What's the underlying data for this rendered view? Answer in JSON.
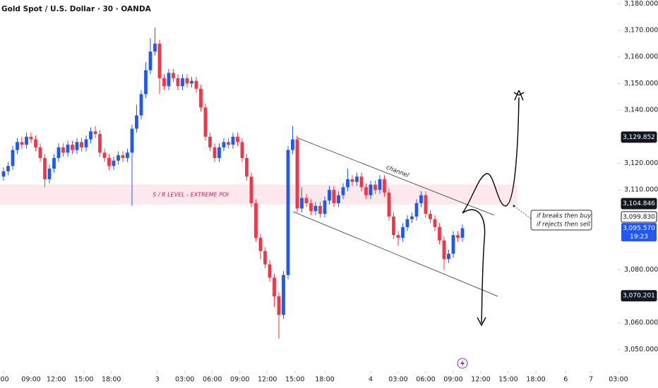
{
  "chart_data": {
    "type": "candlestick",
    "title": "Gold Spot / U.S. Dollar · 30 · OANDA",
    "up_color": "#2157f3",
    "down_color": "#f23645",
    "open": [
      3115,
      3117,
      3119,
      3125,
      3128,
      3127,
      3130,
      3129,
      3126,
      3122,
      3114,
      3118,
      3122,
      3126,
      3124,
      3127,
      3125,
      3128,
      3126,
      3129,
      3132,
      3131,
      3124,
      3122,
      3119,
      3121,
      3123,
      3122,
      3124,
      3133,
      3138,
      3146,
      3155,
      3162,
      3165,
      3152,
      3149,
      3154,
      3152,
      3149,
      3152,
      3150,
      3151,
      3148,
      3141,
      3130,
      3126,
      3122,
      3126,
      3128,
      3127,
      3130,
      3128,
      3122,
      3115,
      3105,
      3092,
      3087,
      3082,
      3077,
      3070,
      3063,
      3078,
      3125,
      3129,
      3103,
      3107,
      3105,
      3102,
      3104,
      3101,
      3106,
      3110,
      3105,
      3108,
      3111,
      3114,
      3113,
      3115,
      3111,
      3108,
      3112,
      3110,
      3114,
      3109,
      3100,
      3093,
      3092,
      3096,
      3099,
      3100,
      3105,
      3108,
      3101,
      3099,
      3096,
      3091,
      3084,
      3086,
      3093,
      3092
    ],
    "high": [
      3118.5,
      3120.5,
      3126.5,
      3129.5,
      3130,
      3131.5,
      3131.5,
      3130.5,
      3127.5,
      3123.5,
      3119.5,
      3123.5,
      3127.5,
      3127.5,
      3128.5,
      3128.5,
      3129.5,
      3129.5,
      3130.5,
      3133.5,
      3134,
      3132.5,
      3125.5,
      3123.5,
      3122.5,
      3124.5,
      3124.5,
      3125.5,
      3134.5,
      3142,
      3147.5,
      3158,
      3167,
      3171,
      3166.5,
      3153.5,
      3155.5,
      3155.5,
      3153.5,
      3153.5,
      3153.5,
      3152.5,
      3152.5,
      3149.5,
      3142.5,
      3131.5,
      3127.5,
      3127.5,
      3129.5,
      3129.5,
      3131.5,
      3131.5,
      3129.5,
      3123.5,
      3116.5,
      3106.5,
      3093.5,
      3088.5,
      3083.5,
      3078.5,
      3071.5,
      3079.5,
      3126.5,
      3134,
      3130.5,
      3111,
      3108.5,
      3106.5,
      3105.5,
      3105.5,
      3107.5,
      3111.5,
      3111.5,
      3109.5,
      3112.5,
      3118,
      3115.5,
      3116.5,
      3116.5,
      3112.5,
      3113.5,
      3113.5,
      3115.5,
      3115.5,
      3110.5,
      3101.5,
      3094.5,
      3097.5,
      3100.5,
      3101.5,
      3106.5,
      3109.5,
      3109.5,
      3102.5,
      3100.5,
      3097.5,
      3092.5,
      3087.5,
      3094.5,
      3094.5,
      3097
    ],
    "low": [
      3113.5,
      3115.5,
      3117.5,
      3123.5,
      3125.5,
      3125.5,
      3127.5,
      3124.5,
      3120.5,
      3111,
      3112.5,
      3116.5,
      3120.5,
      3122.5,
      3122.5,
      3123.5,
      3123.5,
      3124.5,
      3124.5,
      3127.5,
      3129.5,
      3122.5,
      3120.5,
      3117.5,
      3117.5,
      3119.5,
      3120.5,
      3120.5,
      3104,
      3131.5,
      3136.5,
      3144.5,
      3153.5,
      3160.5,
      3146,
      3147.5,
      3147.5,
      3150.5,
      3147.5,
      3147.5,
      3148.5,
      3148.5,
      3146.5,
      3139.5,
      3128.5,
      3124.5,
      3120.5,
      3120.5,
      3124.5,
      3125.5,
      3125.5,
      3126.5,
      3120.5,
      3113.5,
      3103.5,
      3090.5,
      3084,
      3080.5,
      3075.5,
      3066,
      3054,
      3061.5,
      3076.5,
      3123.5,
      3101.5,
      3101.5,
      3103.5,
      3100.5,
      3100.5,
      3099.5,
      3099.5,
      3104.5,
      3103.5,
      3103.5,
      3106.5,
      3109.5,
      3111.5,
      3111.5,
      3109.5,
      3106.5,
      3106.5,
      3108.5,
      3108.5,
      3107.5,
      3098.5,
      3091.5,
      3089,
      3090.5,
      3094.5,
      3097.5,
      3098.5,
      3103.5,
      3099.5,
      3097.5,
      3094.5,
      3089.5,
      3080,
      3082.5,
      3084.5,
      3090.5,
      3090.5
    ],
    "close": [
      3117,
      3119,
      3125,
      3128,
      3127,
      3130,
      3129,
      3126,
      3122,
      3114,
      3118,
      3122,
      3126,
      3124,
      3127,
      3125,
      3128,
      3126,
      3129,
      3132,
      3131,
      3124,
      3122,
      3119,
      3121,
      3123,
      3122,
      3124,
      3133,
      3138,
      3146,
      3155,
      3162,
      3165,
      3152,
      3149,
      3154,
      3152,
      3149,
      3152,
      3150,
      3151,
      3148,
      3141,
      3130,
      3126,
      3122,
      3126,
      3128,
      3127,
      3130,
      3128,
      3122,
      3115,
      3105,
      3092,
      3087,
      3082,
      3077,
      3070,
      3063,
      3078,
      3125,
      3129,
      3103,
      3107,
      3105,
      3102,
      3104,
      3101,
      3106,
      3110,
      3105,
      3108,
      3111,
      3114,
      3113,
      3115,
      3111,
      3108,
      3112,
      3110,
      3114,
      3109,
      3100,
      3093,
      3092,
      3096,
      3099,
      3100,
      3105,
      3108,
      3101,
      3099,
      3096,
      3091,
      3084,
      3086,
      3093,
      3092,
      3095.57
    ],
    "xlim": [
      -0.77,
      133.85
    ],
    "xticks": [
      {
        "value": 0,
        "label": ":00"
      },
      {
        "value": 6,
        "label": "09:00"
      },
      {
        "value": 11.5,
        "label": "12:00"
      },
      {
        "value": 17.5,
        "label": "15:00"
      },
      {
        "value": 23.5,
        "label": "18:00"
      },
      {
        "value": 33.5,
        "label": "3"
      },
      {
        "value": 39.5,
        "label": "03:00"
      },
      {
        "value": 45.5,
        "label": "06:00"
      },
      {
        "value": 51.5,
        "label": "09:00"
      },
      {
        "value": 57.5,
        "label": "12:00"
      },
      {
        "value": 63.5,
        "label": "15:00"
      },
      {
        "value": 70,
        "label": "18:00"
      },
      {
        "value": 80,
        "label": "4"
      },
      {
        "value": 86,
        "label": "03:00"
      },
      {
        "value": 92,
        "label": "06:00"
      },
      {
        "value": 98,
        "label": "09:00"
      },
      {
        "value": 104,
        "label": "12:00"
      },
      {
        "value": 110,
        "label": "15:00"
      },
      {
        "value": 116,
        "label": "18:00"
      },
      {
        "value": 122.5,
        "label": "6"
      },
      {
        "value": 128,
        "label": "7"
      },
      {
        "value": 134,
        "label": "03:00"
      }
    ],
    "ylim": [
      3044,
      3181.4
    ],
    "yticks": [
      {
        "value": 3050,
        "label": "3,050.000"
      },
      {
        "value": 3060,
        "label": "3,060.000"
      },
      {
        "value": 3080,
        "label": "3,080.000"
      },
      {
        "value": 3110,
        "label": "3,110.000"
      },
      {
        "value": 3120,
        "label": "3,120.000"
      },
      {
        "value": 3140,
        "label": "3,140.000"
      },
      {
        "value": 3150,
        "label": "3,150.000"
      },
      {
        "value": 3160,
        "label": "3,160.000"
      },
      {
        "value": 3170,
        "label": "3,170.000"
      },
      {
        "value": 3180,
        "label": "3,180.000"
      }
    ],
    "price_labels": [
      {
        "value": 3129.852,
        "label": "3,129.852",
        "style": "dark"
      },
      {
        "value": 3104.846,
        "label": "3,104.846",
        "style": "dark"
      },
      {
        "value": 3099.83,
        "label": "3,099.830",
        "style": "light"
      },
      {
        "value": 3070.201,
        "label": "3,070.201",
        "style": "dark"
      }
    ],
    "last_price": {
      "value": 3095.57,
      "label": "3,095.570",
      "countdown": "19:23"
    },
    "zone": {
      "low": 3104.5,
      "high": 3112,
      "x_end": 112,
      "label": "S / R LEVEL - EXTREME POI"
    },
    "channel": {
      "label": "channel",
      "upper": {
        "x": [
          63.8,
          106.9
        ],
        "y": [
          3129.7,
          3100.5
        ]
      },
      "lower": {
        "x": [
          63.1,
          107.7
        ],
        "y": [
          3101.8,
          3070
        ]
      }
    },
    "note": [
      "if breaks then buy",
      "if rejects then sell"
    ]
  }
}
